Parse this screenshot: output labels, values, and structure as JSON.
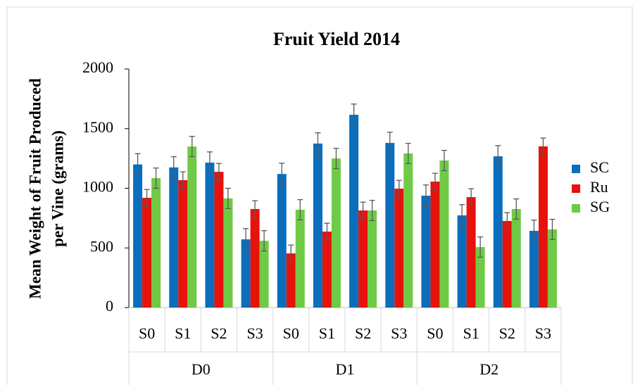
{
  "chart_data": {
    "type": "bar",
    "title": "Fruit Yield 2014",
    "ylabel": [
      "Mean Weight of Fruit Produced",
      "per Vine (grams)"
    ],
    "categories": [
      "S0",
      "S1",
      "S2",
      "S3",
      "S0",
      "S1",
      "S2",
      "S3",
      "S0",
      "S1",
      "S2",
      "S3"
    ],
    "groups": [
      "D0",
      "D1",
      "D2"
    ],
    "series": [
      {
        "name": "SC",
        "color": "#0a6ebd",
        "values": [
          1200,
          1175,
          1215,
          572,
          1120,
          1375,
          1616,
          1380,
          938,
          773,
          1268,
          643
        ],
        "errors": [
          90,
          90,
          90,
          90,
          90,
          90,
          90,
          90,
          90,
          90,
          90,
          90
        ]
      },
      {
        "name": "Ru",
        "color": "#e8120c",
        "values": [
          920,
          1068,
          1138,
          826,
          454,
          637,
          814,
          997,
          1056,
          926,
          726,
          1351
        ],
        "errors": [
          70,
          70,
          70,
          70,
          70,
          70,
          70,
          70,
          70,
          70,
          70,
          70
        ]
      },
      {
        "name": "SG",
        "color": "#6fcb45",
        "values": [
          1085,
          1350,
          915,
          560,
          820,
          1250,
          814,
          1292,
          1233,
          507,
          826,
          655
        ],
        "errors": [
          85,
          85,
          85,
          85,
          85,
          85,
          85,
          85,
          85,
          85,
          85,
          85
        ]
      }
    ],
    "ylim": [
      0,
      2000
    ],
    "yticks": [
      0,
      500,
      1000,
      1500,
      2000
    ],
    "legend": "right"
  }
}
